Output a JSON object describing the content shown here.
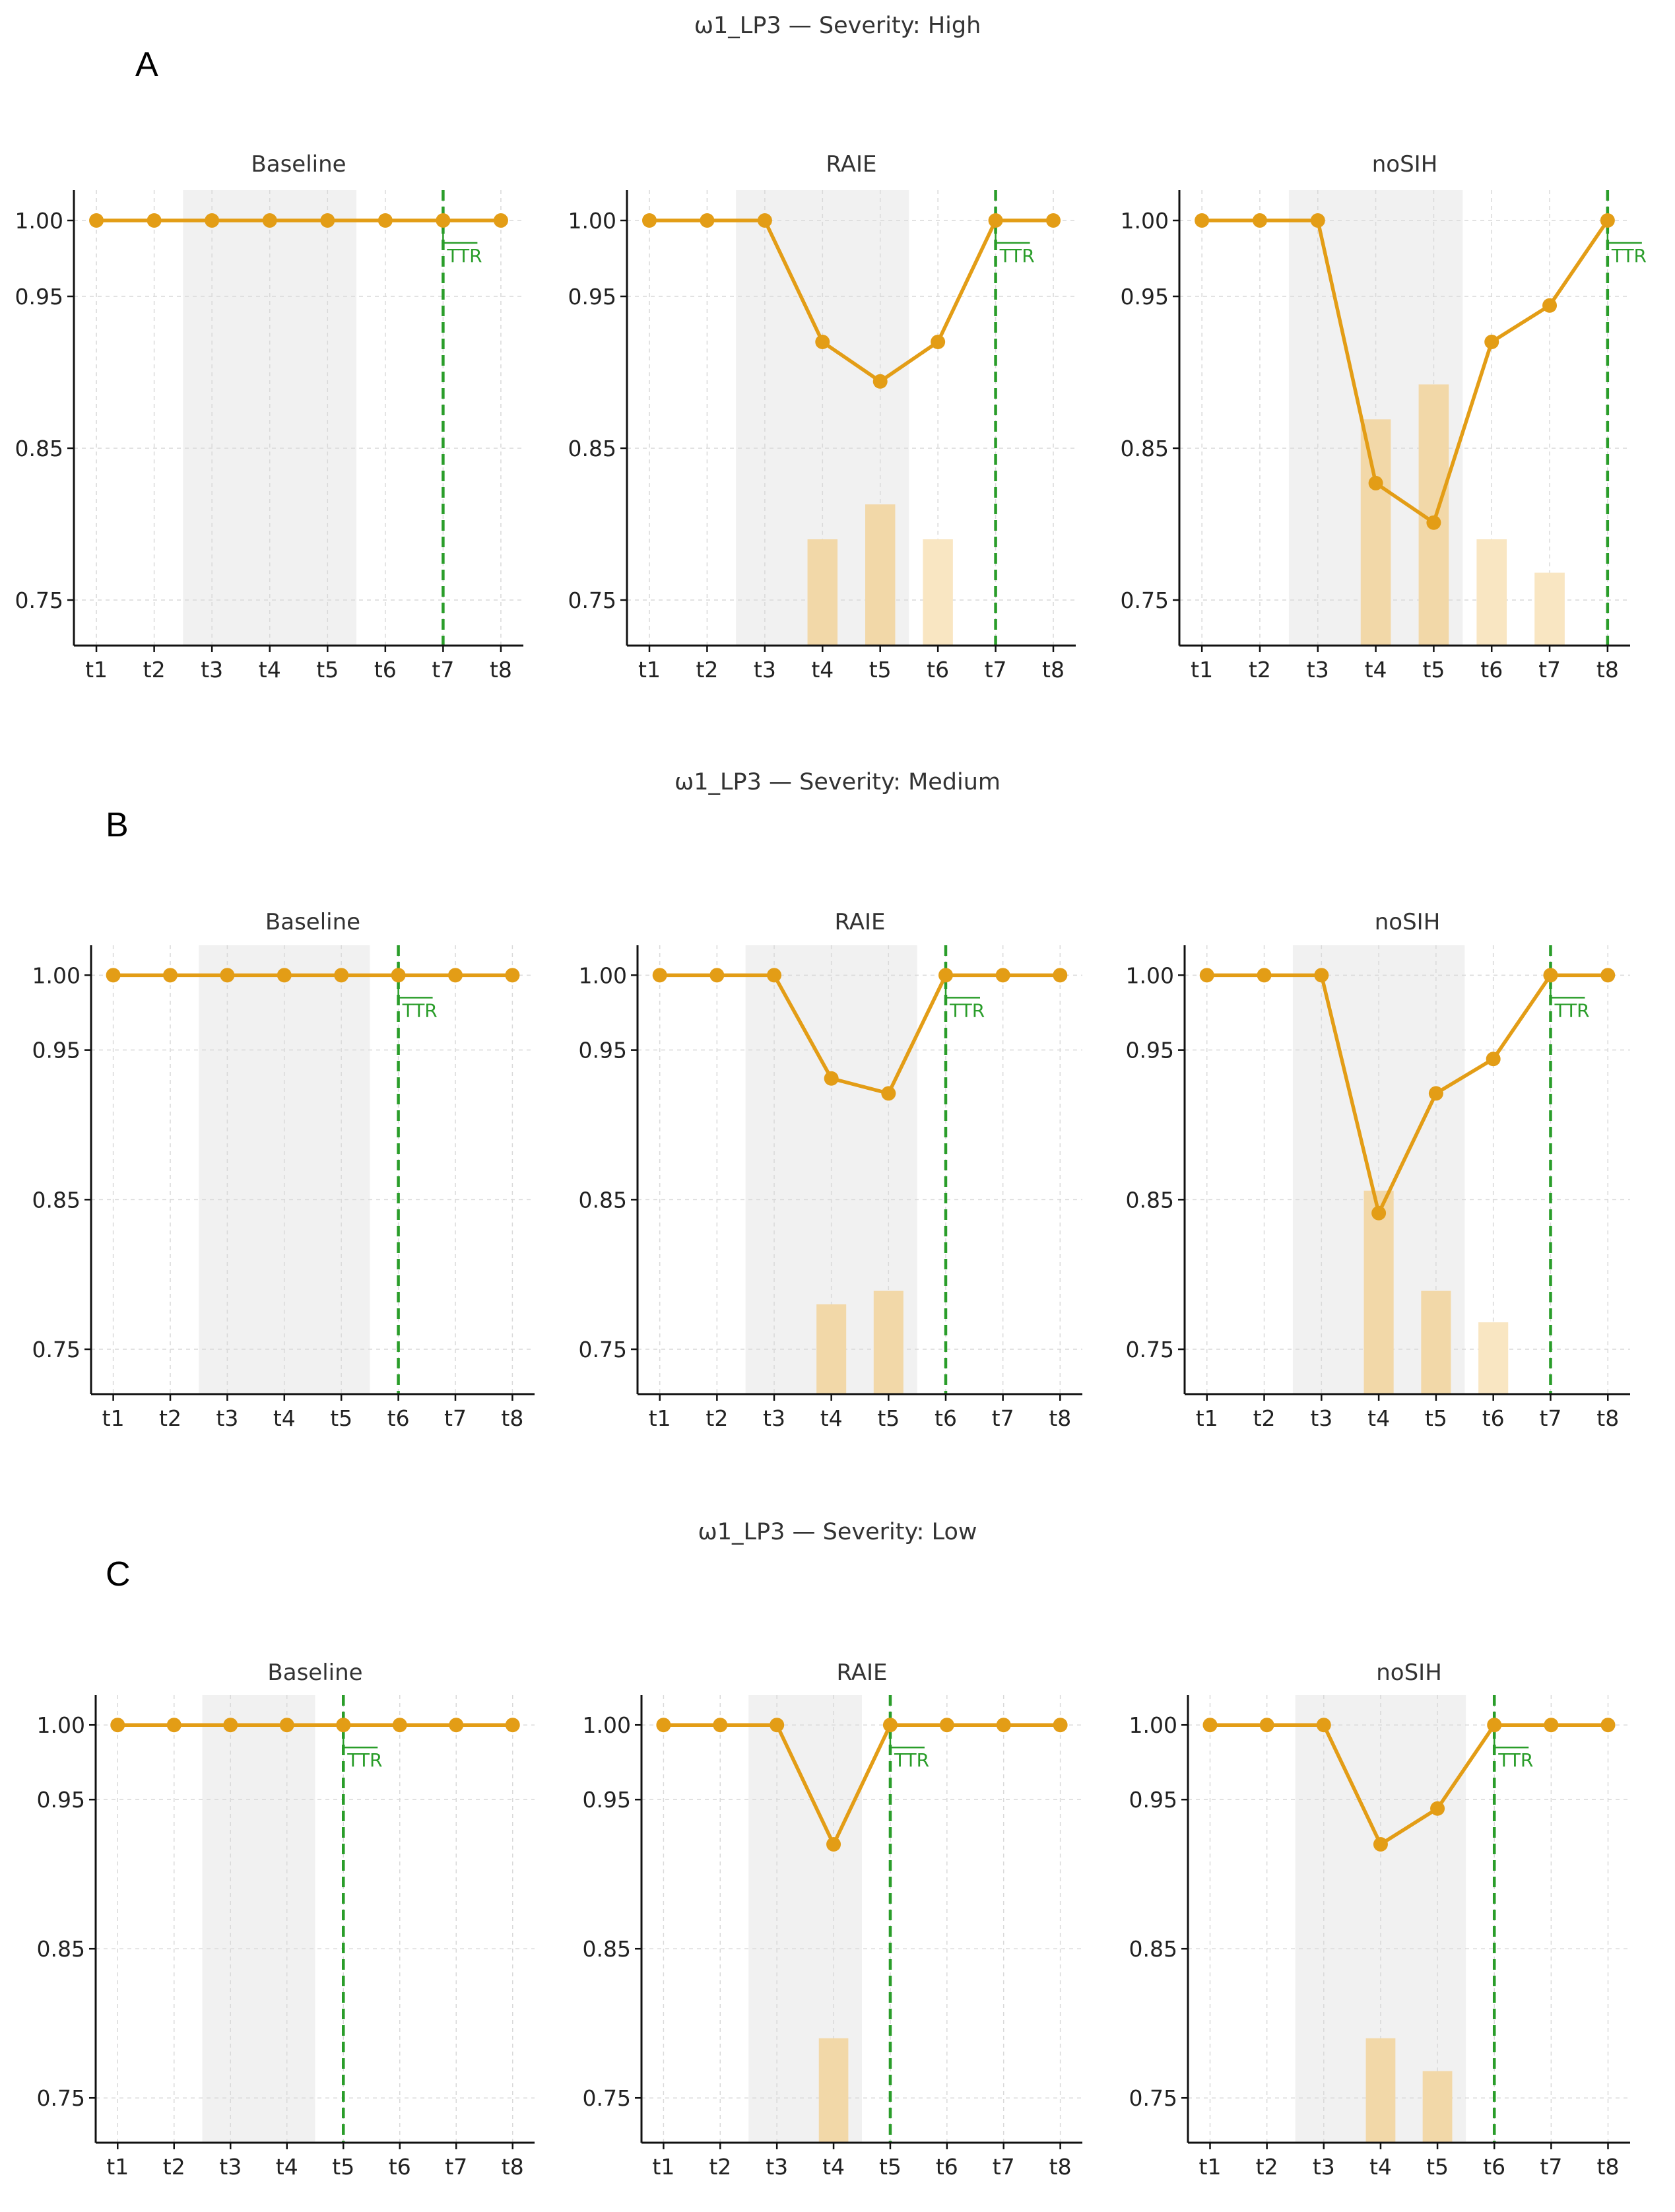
{
  "colors": {
    "line": "#e39d16",
    "bar": "#f2d8a8",
    "bar_light": "#f9e6c2",
    "shade": "#f1f1f1",
    "ttr": "#2a9d2a",
    "grid": "#d9d9d9"
  },
  "ttr_text": "TTR",
  "chart_data": [
    {
      "row_title": "ω1_LP3 — Severity: High",
      "panel_letter": "A",
      "charts": [
        {
          "title": "Baseline",
          "type": "line",
          "categories": [
            "t1",
            "t2",
            "t3",
            "t4",
            "t5",
            "t6",
            "t7",
            "t8"
          ],
          "values": [
            1.0,
            1.0,
            1.0,
            1.0,
            1.0,
            1.0,
            1.0,
            1.0
          ],
          "bars": [
            0,
            0,
            0,
            0,
            0,
            0,
            0,
            0
          ],
          "shade": [
            2.5,
            5.5
          ],
          "ttr": 7,
          "ylim": [
            0.72,
            1.02
          ],
          "yticks": [
            "1.00",
            "0.95",
            "0.85",
            "0.75"
          ]
        },
        {
          "title": "RAIE",
          "type": "line",
          "categories": [
            "t1",
            "t2",
            "t3",
            "t4",
            "t5",
            "t6",
            "t7",
            "t8"
          ],
          "values": [
            1.0,
            1.0,
            1.0,
            0.92,
            0.894,
            0.92,
            1.0,
            1.0
          ],
          "bars": [
            0,
            0,
            0,
            0.79,
            0.813,
            0.79,
            0,
            0
          ],
          "shade": [
            2.5,
            5.5
          ],
          "ttr": 7,
          "ylim": [
            0.72,
            1.02
          ],
          "yticks": [
            "1.00",
            "0.95",
            "0.85",
            "0.75"
          ]
        },
        {
          "title": "noSIH",
          "type": "line",
          "categories": [
            "t1",
            "t2",
            "t3",
            "t4",
            "t5",
            "t6",
            "t7",
            "t8"
          ],
          "values": [
            1.0,
            1.0,
            1.0,
            0.827,
            0.801,
            0.92,
            0.944,
            1.0
          ],
          "bars": [
            0,
            0,
            0,
            0.869,
            0.892,
            0.79,
            0.768,
            0
          ],
          "shade": [
            2.5,
            5.5
          ],
          "ttr": 8,
          "ylim": [
            0.72,
            1.02
          ],
          "yticks": [
            "1.00",
            "0.95",
            "0.85",
            "0.75"
          ]
        }
      ]
    },
    {
      "row_title": "ω1_LP3 — Severity: Medium",
      "panel_letter": "B",
      "charts": [
        {
          "title": "Baseline",
          "type": "line",
          "categories": [
            "t1",
            "t2",
            "t3",
            "t4",
            "t5",
            "t6",
            "t7",
            "t8"
          ],
          "values": [
            1.0,
            1.0,
            1.0,
            1.0,
            1.0,
            1.0,
            1.0,
            1.0
          ],
          "bars": [
            0,
            0,
            0,
            0,
            0,
            0,
            0,
            0
          ],
          "shade": [
            2.5,
            5.5
          ],
          "ttr": 6,
          "ylim": [
            0.72,
            1.02
          ],
          "yticks": [
            "1.00",
            "0.95",
            "0.85",
            "0.75"
          ]
        },
        {
          "title": "RAIE",
          "type": "line",
          "categories": [
            "t1",
            "t2",
            "t3",
            "t4",
            "t5",
            "t6",
            "t7",
            "t8"
          ],
          "values": [
            1.0,
            1.0,
            1.0,
            0.931,
            0.921,
            1.0,
            1.0,
            1.0
          ],
          "bars": [
            0,
            0,
            0,
            0.78,
            0.789,
            0,
            0,
            0
          ],
          "shade": [
            2.5,
            5.5
          ],
          "ttr": 6,
          "ylim": [
            0.72,
            1.02
          ],
          "yticks": [
            "1.00",
            "0.95",
            "0.85",
            "0.75"
          ]
        },
        {
          "title": "noSIH",
          "type": "line",
          "categories": [
            "t1",
            "t2",
            "t3",
            "t4",
            "t5",
            "t6",
            "t7",
            "t8"
          ],
          "values": [
            1.0,
            1.0,
            1.0,
            0.841,
            0.921,
            0.944,
            1.0,
            1.0
          ],
          "bars": [
            0,
            0,
            0,
            0.856,
            0.789,
            0.768,
            0,
            0
          ],
          "shade": [
            2.5,
            5.5
          ],
          "ttr": 7,
          "ylim": [
            0.72,
            1.02
          ],
          "yticks": [
            "1.00",
            "0.95",
            "0.85",
            "0.75"
          ]
        }
      ]
    },
    {
      "row_title": "ω1_LP3 — Severity: Low",
      "panel_letter": "C",
      "charts": [
        {
          "title": "Baseline",
          "type": "line",
          "categories": [
            "t1",
            "t2",
            "t3",
            "t4",
            "t5",
            "t6",
            "t7",
            "t8"
          ],
          "values": [
            1.0,
            1.0,
            1.0,
            1.0,
            1.0,
            1.0,
            1.0,
            1.0
          ],
          "bars": [
            0,
            0,
            0,
            0,
            0,
            0,
            0,
            0
          ],
          "shade": [
            2.5,
            4.5
          ],
          "ttr": 5,
          "ylim": [
            0.72,
            1.02
          ],
          "yticks": [
            "1.00",
            "0.95",
            "0.85",
            "0.75"
          ]
        },
        {
          "title": "RAIE",
          "type": "line",
          "categories": [
            "t1",
            "t2",
            "t3",
            "t4",
            "t5",
            "t6",
            "t7",
            "t8"
          ],
          "values": [
            1.0,
            1.0,
            1.0,
            0.92,
            1.0,
            1.0,
            1.0,
            1.0
          ],
          "bars": [
            0,
            0,
            0,
            0.79,
            0,
            0,
            0,
            0
          ],
          "shade": [
            2.5,
            4.5
          ],
          "ttr": 5,
          "ylim": [
            0.72,
            1.02
          ],
          "yticks": [
            "1.00",
            "0.95",
            "0.85",
            "0.75"
          ]
        },
        {
          "title": "noSIH",
          "type": "line",
          "categories": [
            "t1",
            "t2",
            "t3",
            "t4",
            "t5",
            "t6",
            "t7",
            "t8"
          ],
          "values": [
            1.0,
            1.0,
            1.0,
            0.92,
            0.944,
            1.0,
            1.0,
            1.0
          ],
          "bars": [
            0,
            0,
            0,
            0.79,
            0.768,
            0,
            0,
            0
          ],
          "shade": [
            2.5,
            5.5
          ],
          "ttr": 6,
          "ylim": [
            0.72,
            1.02
          ],
          "yticks": [
            "1.00",
            "0.95",
            "0.85",
            "0.75"
          ]
        }
      ]
    }
  ]
}
